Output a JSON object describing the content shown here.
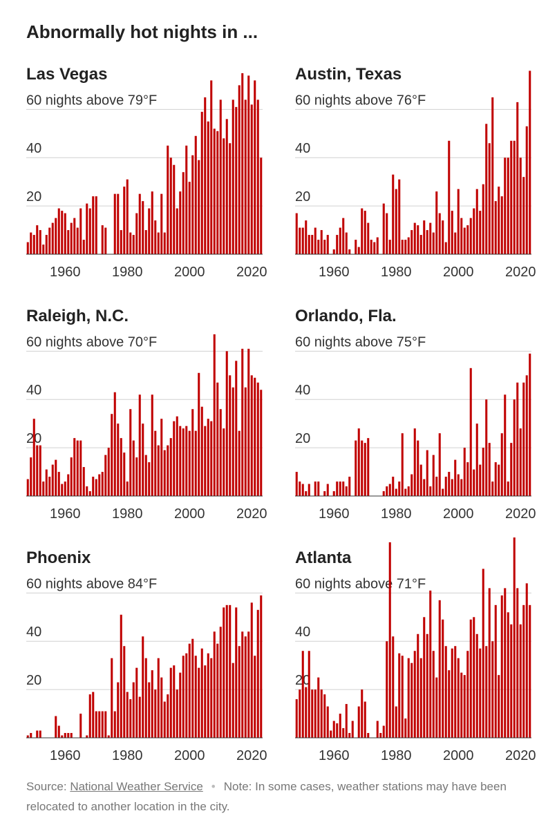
{
  "title": "Abnormally hot nights in ...",
  "chart_data": [
    {
      "type": "bar",
      "title": "Las Vegas",
      "color": "#c00000",
      "xlim": [
        1947.5,
        2023.5
      ],
      "ylim": [
        0,
        85
      ],
      "xticks": [
        1960,
        1980,
        2000,
        2020
      ],
      "yticks": [
        20,
        40,
        {
          "value": 60,
          "label": "60 nights above 79°F"
        }
      ],
      "x": [
        1948,
        1949,
        1950,
        1951,
        1952,
        1953,
        1954,
        1955,
        1956,
        1957,
        1958,
        1959,
        1960,
        1961,
        1962,
        1963,
        1964,
        1965,
        1966,
        1967,
        1968,
        1969,
        1970,
        1971,
        1972,
        1973,
        1974,
        1975,
        1976,
        1977,
        1978,
        1979,
        1980,
        1981,
        1982,
        1983,
        1984,
        1985,
        1986,
        1987,
        1988,
        1989,
        1990,
        1991,
        1992,
        1993,
        1994,
        1995,
        1996,
        1997,
        1998,
        1999,
        2000,
        2001,
        2002,
        2003,
        2004,
        2005,
        2006,
        2007,
        2008,
        2009,
        2010,
        2011,
        2012,
        2013,
        2014,
        2015,
        2016,
        2017,
        2018,
        2019,
        2020,
        2021,
        2022,
        2023
      ],
      "values": [
        5,
        9,
        8,
        12,
        10,
        4,
        8,
        11,
        13,
        15,
        19,
        18,
        17,
        10,
        13,
        15,
        11,
        19,
        6,
        21,
        19,
        24,
        24,
        null,
        12,
        11,
        null,
        null,
        25,
        25,
        10,
        28,
        31,
        9,
        8,
        17,
        25,
        22,
        10,
        19,
        26,
        14,
        9,
        25,
        9,
        45,
        40,
        37,
        19,
        26,
        34,
        45,
        30,
        41,
        49,
        39,
        59,
        65,
        55,
        72,
        52,
        51,
        64,
        48,
        56,
        46,
        64,
        61,
        70,
        75,
        64,
        74,
        62,
        72,
        64,
        40
      ]
    },
    {
      "type": "bar",
      "title": "Austin, Texas",
      "color": "#c00000",
      "xlim": [
        1947.5,
        2023.5
      ],
      "ylim": [
        0,
        85
      ],
      "xticks": [
        1960,
        1980,
        2000,
        2020
      ],
      "yticks": [
        20,
        40,
        {
          "value": 60,
          "label": "60 nights above 76°F"
        }
      ],
      "x": [
        1948,
        1949,
        1950,
        1951,
        1952,
        1953,
        1954,
        1955,
        1956,
        1957,
        1958,
        1959,
        1960,
        1961,
        1962,
        1963,
        1964,
        1965,
        1966,
        1967,
        1968,
        1969,
        1970,
        1971,
        1972,
        1973,
        1974,
        1975,
        1976,
        1977,
        1978,
        1979,
        1980,
        1981,
        1982,
        1983,
        1984,
        1985,
        1986,
        1987,
        1988,
        1989,
        1990,
        1991,
        1992,
        1993,
        1994,
        1995,
        1996,
        1997,
        1998,
        1999,
        2000,
        2001,
        2002,
        2003,
        2004,
        2005,
        2006,
        2007,
        2008,
        2009,
        2010,
        2011,
        2012,
        2013,
        2014,
        2015,
        2016,
        2017,
        2018,
        2019,
        2020,
        2021,
        2022,
        2023
      ],
      "values": [
        17,
        11,
        11,
        14,
        8,
        8,
        11,
        6,
        10,
        6,
        8,
        null,
        2,
        8,
        11,
        15,
        9,
        2,
        null,
        6,
        3,
        19,
        18,
        13,
        6,
        5,
        7,
        null,
        21,
        17,
        6,
        33,
        27,
        31,
        6,
        6,
        7,
        10,
        13,
        12,
        8,
        14,
        10,
        13,
        9,
        26,
        17,
        14,
        5,
        47,
        18,
        9,
        27,
        15,
        11,
        12,
        15,
        19,
        27,
        18,
        29,
        54,
        46,
        65,
        22,
        28,
        24,
        40,
        40,
        47,
        47,
        63,
        40,
        32,
        53,
        76
      ]
    },
    {
      "type": "bar",
      "title": "Raleigh, N.C.",
      "color": "#c00000",
      "xlim": [
        1947.5,
        2023.5
      ],
      "ylim": [
        0,
        85
      ],
      "xticks": [
        1960,
        1980,
        2000,
        2020
      ],
      "yticks": [
        20,
        40,
        {
          "value": 60,
          "label": "60 nights above 70°F"
        }
      ],
      "x": [
        1948,
        1949,
        1950,
        1951,
        1952,
        1953,
        1954,
        1955,
        1956,
        1957,
        1958,
        1959,
        1960,
        1961,
        1962,
        1963,
        1964,
        1965,
        1966,
        1967,
        1968,
        1969,
        1970,
        1971,
        1972,
        1973,
        1974,
        1975,
        1976,
        1977,
        1978,
        1979,
        1980,
        1981,
        1982,
        1983,
        1984,
        1985,
        1986,
        1987,
        1988,
        1989,
        1990,
        1991,
        1992,
        1993,
        1994,
        1995,
        1996,
        1997,
        1998,
        1999,
        2000,
        2001,
        2002,
        2003,
        2004,
        2005,
        2006,
        2007,
        2008,
        2009,
        2010,
        2011,
        2012,
        2013,
        2014,
        2015,
        2016,
        2017,
        2018,
        2019,
        2020,
        2021,
        2022,
        2023
      ],
      "values": [
        7,
        16,
        32,
        21,
        21,
        6,
        11,
        8,
        13,
        15,
        10,
        5,
        6,
        9,
        16,
        24,
        23,
        23,
        12,
        4,
        2,
        8,
        7,
        9,
        10,
        17,
        20,
        34,
        43,
        30,
        24,
        18,
        6,
        36,
        23,
        16,
        42,
        30,
        17,
        14,
        42,
        27,
        21,
        32,
        19,
        21,
        24,
        31,
        33,
        29,
        28,
        29,
        27,
        36,
        27,
        51,
        37,
        29,
        32,
        31,
        67,
        47,
        36,
        28,
        60,
        50,
        45,
        56,
        27,
        61,
        45,
        61,
        50,
        49,
        47,
        44
      ]
    },
    {
      "type": "bar",
      "title": "Orlando, Fla.",
      "color": "#c00000",
      "xlim": [
        1947.5,
        2023.5
      ],
      "ylim": [
        0,
        85
      ],
      "xticks": [
        1960,
        1980,
        2000,
        2020
      ],
      "yticks": [
        20,
        40,
        {
          "value": 60,
          "label": "60 nights above 75°F"
        }
      ],
      "x": [
        1948,
        1949,
        1950,
        1951,
        1952,
        1953,
        1954,
        1955,
        1956,
        1957,
        1958,
        1959,
        1960,
        1961,
        1962,
        1963,
        1964,
        1965,
        1966,
        1967,
        1968,
        1969,
        1970,
        1971,
        1972,
        1973,
        1974,
        1975,
        1976,
        1977,
        1978,
        1979,
        1980,
        1981,
        1982,
        1983,
        1984,
        1985,
        1986,
        1987,
        1988,
        1989,
        1990,
        1991,
        1992,
        1993,
        1994,
        1995,
        1996,
        1997,
        1998,
        1999,
        2000,
        2001,
        2002,
        2003,
        2004,
        2005,
        2006,
        2007,
        2008,
        2009,
        2010,
        2011,
        2012,
        2013,
        2014,
        2015,
        2016,
        2017,
        2018,
        2019,
        2020,
        2021,
        2022,
        2023
      ],
      "values": [
        10,
        6,
        5,
        2,
        5,
        null,
        6,
        6,
        null,
        2,
        5,
        null,
        2,
        6,
        6,
        6,
        4,
        8,
        null,
        23,
        28,
        23,
        22,
        24,
        null,
        null,
        null,
        null,
        2,
        4,
        5,
        8,
        3,
        6,
        26,
        3,
        4,
        9,
        28,
        23,
        13,
        7,
        19,
        4,
        17,
        8,
        26,
        3,
        8,
        10,
        7,
        15,
        9,
        7,
        20,
        14,
        53,
        11,
        30,
        13,
        20,
        40,
        22,
        6,
        14,
        13,
        26,
        42,
        6,
        22,
        40,
        47,
        28,
        47,
        50,
        59
      ]
    },
    {
      "type": "bar",
      "title": "Phoenix",
      "color": "#c00000",
      "xlim": [
        1947.5,
        2023.5
      ],
      "ylim": [
        0,
        85
      ],
      "xticks": [
        1960,
        1980,
        2000,
        2020
      ],
      "yticks": [
        20,
        40,
        {
          "value": 60,
          "label": "60 nights above 84°F"
        }
      ],
      "x": [
        1948,
        1949,
        1950,
        1951,
        1952,
        1953,
        1954,
        1955,
        1956,
        1957,
        1958,
        1959,
        1960,
        1961,
        1962,
        1963,
        1964,
        1965,
        1966,
        1967,
        1968,
        1969,
        1970,
        1971,
        1972,
        1973,
        1974,
        1975,
        1976,
        1977,
        1978,
        1979,
        1980,
        1981,
        1982,
        1983,
        1984,
        1985,
        1986,
        1987,
        1988,
        1989,
        1990,
        1991,
        1992,
        1993,
        1994,
        1995,
        1996,
        1997,
        1998,
        1999,
        2000,
        2001,
        2002,
        2003,
        2004,
        2005,
        2006,
        2007,
        2008,
        2009,
        2010,
        2011,
        2012,
        2013,
        2014,
        2015,
        2016,
        2017,
        2018,
        2019,
        2020,
        2021,
        2022,
        2023
      ],
      "values": [
        1,
        2,
        null,
        3,
        3,
        null,
        null,
        null,
        null,
        9,
        5,
        1,
        2,
        2,
        2,
        null,
        null,
        10,
        null,
        1,
        18,
        19,
        11,
        11,
        11,
        11,
        1,
        33,
        11,
        23,
        51,
        38,
        19,
        16,
        23,
        29,
        17,
        42,
        33,
        23,
        28,
        20,
        33,
        25,
        15,
        18,
        29,
        30,
        20,
        27,
        34,
        35,
        39,
        41,
        34,
        29,
        37,
        30,
        35,
        33,
        44,
        39,
        46,
        54,
        55,
        55,
        31,
        54,
        38,
        44,
        42,
        44,
        56,
        34,
        53,
        59
      ]
    },
    {
      "type": "bar",
      "title": "Atlanta",
      "color": "#c00000",
      "xlim": [
        1947.5,
        2023.5
      ],
      "ylim": [
        0,
        85
      ],
      "xticks": [
        1960,
        1980,
        2000,
        2020
      ],
      "yticks": [
        20,
        40,
        {
          "value": 60,
          "label": "60 nights above 71°F"
        }
      ],
      "x": [
        1948,
        1949,
        1950,
        1951,
        1952,
        1953,
        1954,
        1955,
        1956,
        1957,
        1958,
        1959,
        1960,
        1961,
        1962,
        1963,
        1964,
        1965,
        1966,
        1967,
        1968,
        1969,
        1970,
        1971,
        1972,
        1973,
        1974,
        1975,
        1976,
        1977,
        1978,
        1979,
        1980,
        1981,
        1982,
        1983,
        1984,
        1985,
        1986,
        1987,
        1988,
        1989,
        1990,
        1991,
        1992,
        1993,
        1994,
        1995,
        1996,
        1997,
        1998,
        1999,
        2000,
        2001,
        2002,
        2003,
        2004,
        2005,
        2006,
        2007,
        2008,
        2009,
        2010,
        2011,
        2012,
        2013,
        2014,
        2015,
        2016,
        2017,
        2018,
        2019,
        2020,
        2021,
        2022,
        2023
      ],
      "values": [
        16,
        20,
        36,
        21,
        36,
        20,
        20,
        25,
        20,
        18,
        13,
        3,
        7,
        6,
        10,
        4,
        14,
        2,
        7,
        null,
        13,
        20,
        15,
        2,
        null,
        null,
        7,
        2,
        5,
        40,
        81,
        42,
        13,
        35,
        34,
        8,
        33,
        31,
        36,
        43,
        33,
        50,
        43,
        61,
        36,
        25,
        57,
        49,
        38,
        28,
        37,
        38,
        33,
        27,
        26,
        36,
        49,
        50,
        43,
        37,
        70,
        38,
        62,
        40,
        55,
        26,
        59,
        62,
        52,
        47,
        83,
        62,
        47,
        55,
        64,
        55
      ]
    }
  ],
  "footer": {
    "source_label": "Source:",
    "source": "National Weather Service",
    "note": "Note: In some cases, weather stations may have been relocated to another location in the city."
  }
}
